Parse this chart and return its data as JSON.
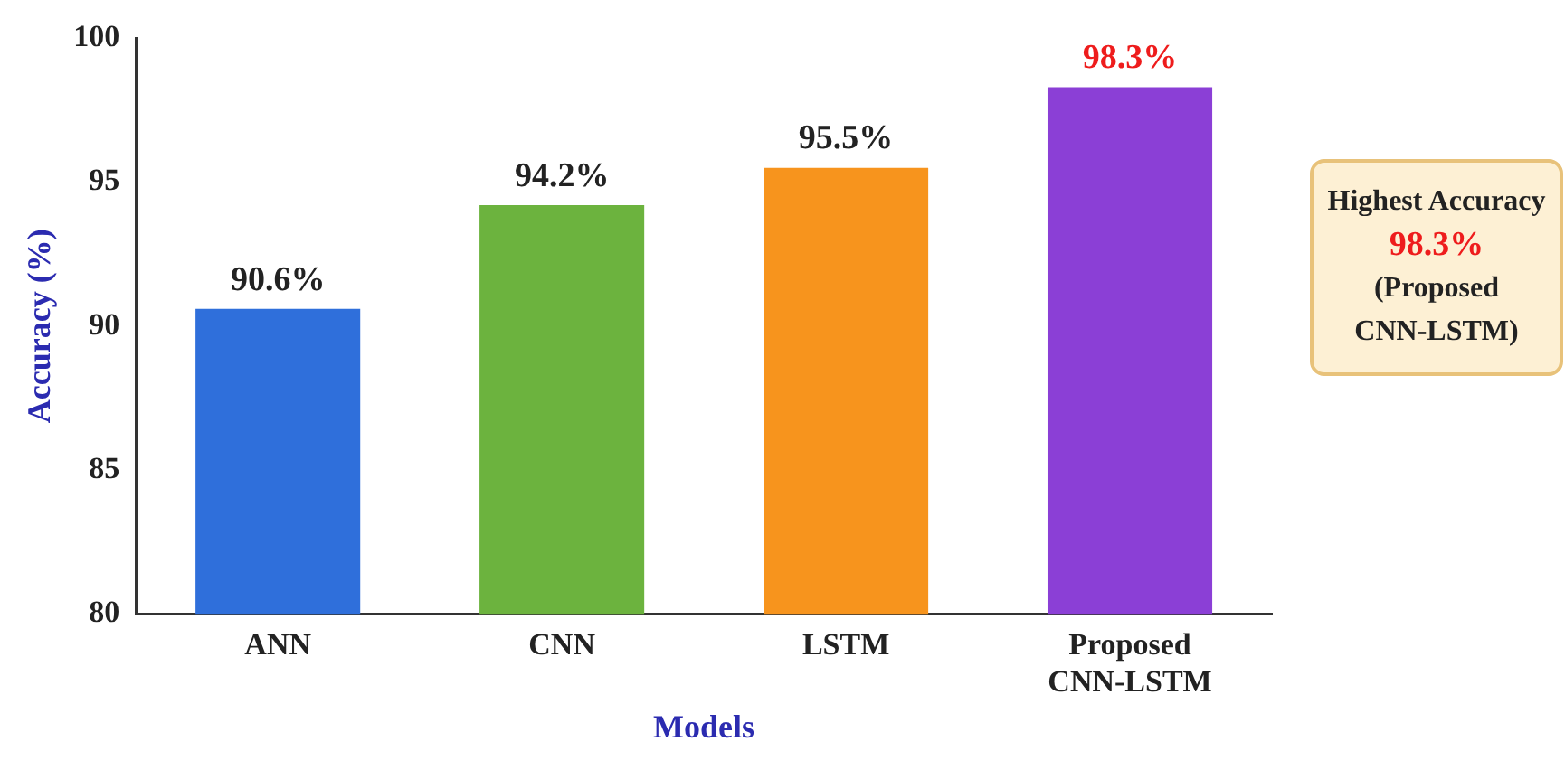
{
  "chart_data": {
    "type": "bar",
    "xlabel": "Models",
    "ylabel": "Accuracy (%)",
    "categories": [
      "ANN",
      "CNN",
      "LSTM",
      "Proposed CNN-LSTM"
    ],
    "values": [
      90.6,
      94.2,
      95.5,
      98.3
    ],
    "colors": [
      "#2f6fdb",
      "#6cb33e",
      "#f7941d",
      "#8b3fd6"
    ],
    "value_labels": [
      "90.6%",
      "94.2%",
      "95.5%",
      "98.3%"
    ],
    "ylim": [
      80,
      100
    ],
    "yticks": [
      80,
      85,
      90,
      95,
      100
    ],
    "grid": false,
    "legend": false,
    "annotations": [
      "Highest Accuracy\n98.3%\n(Proposed\nCNN-LSTM)"
    ]
  }
}
